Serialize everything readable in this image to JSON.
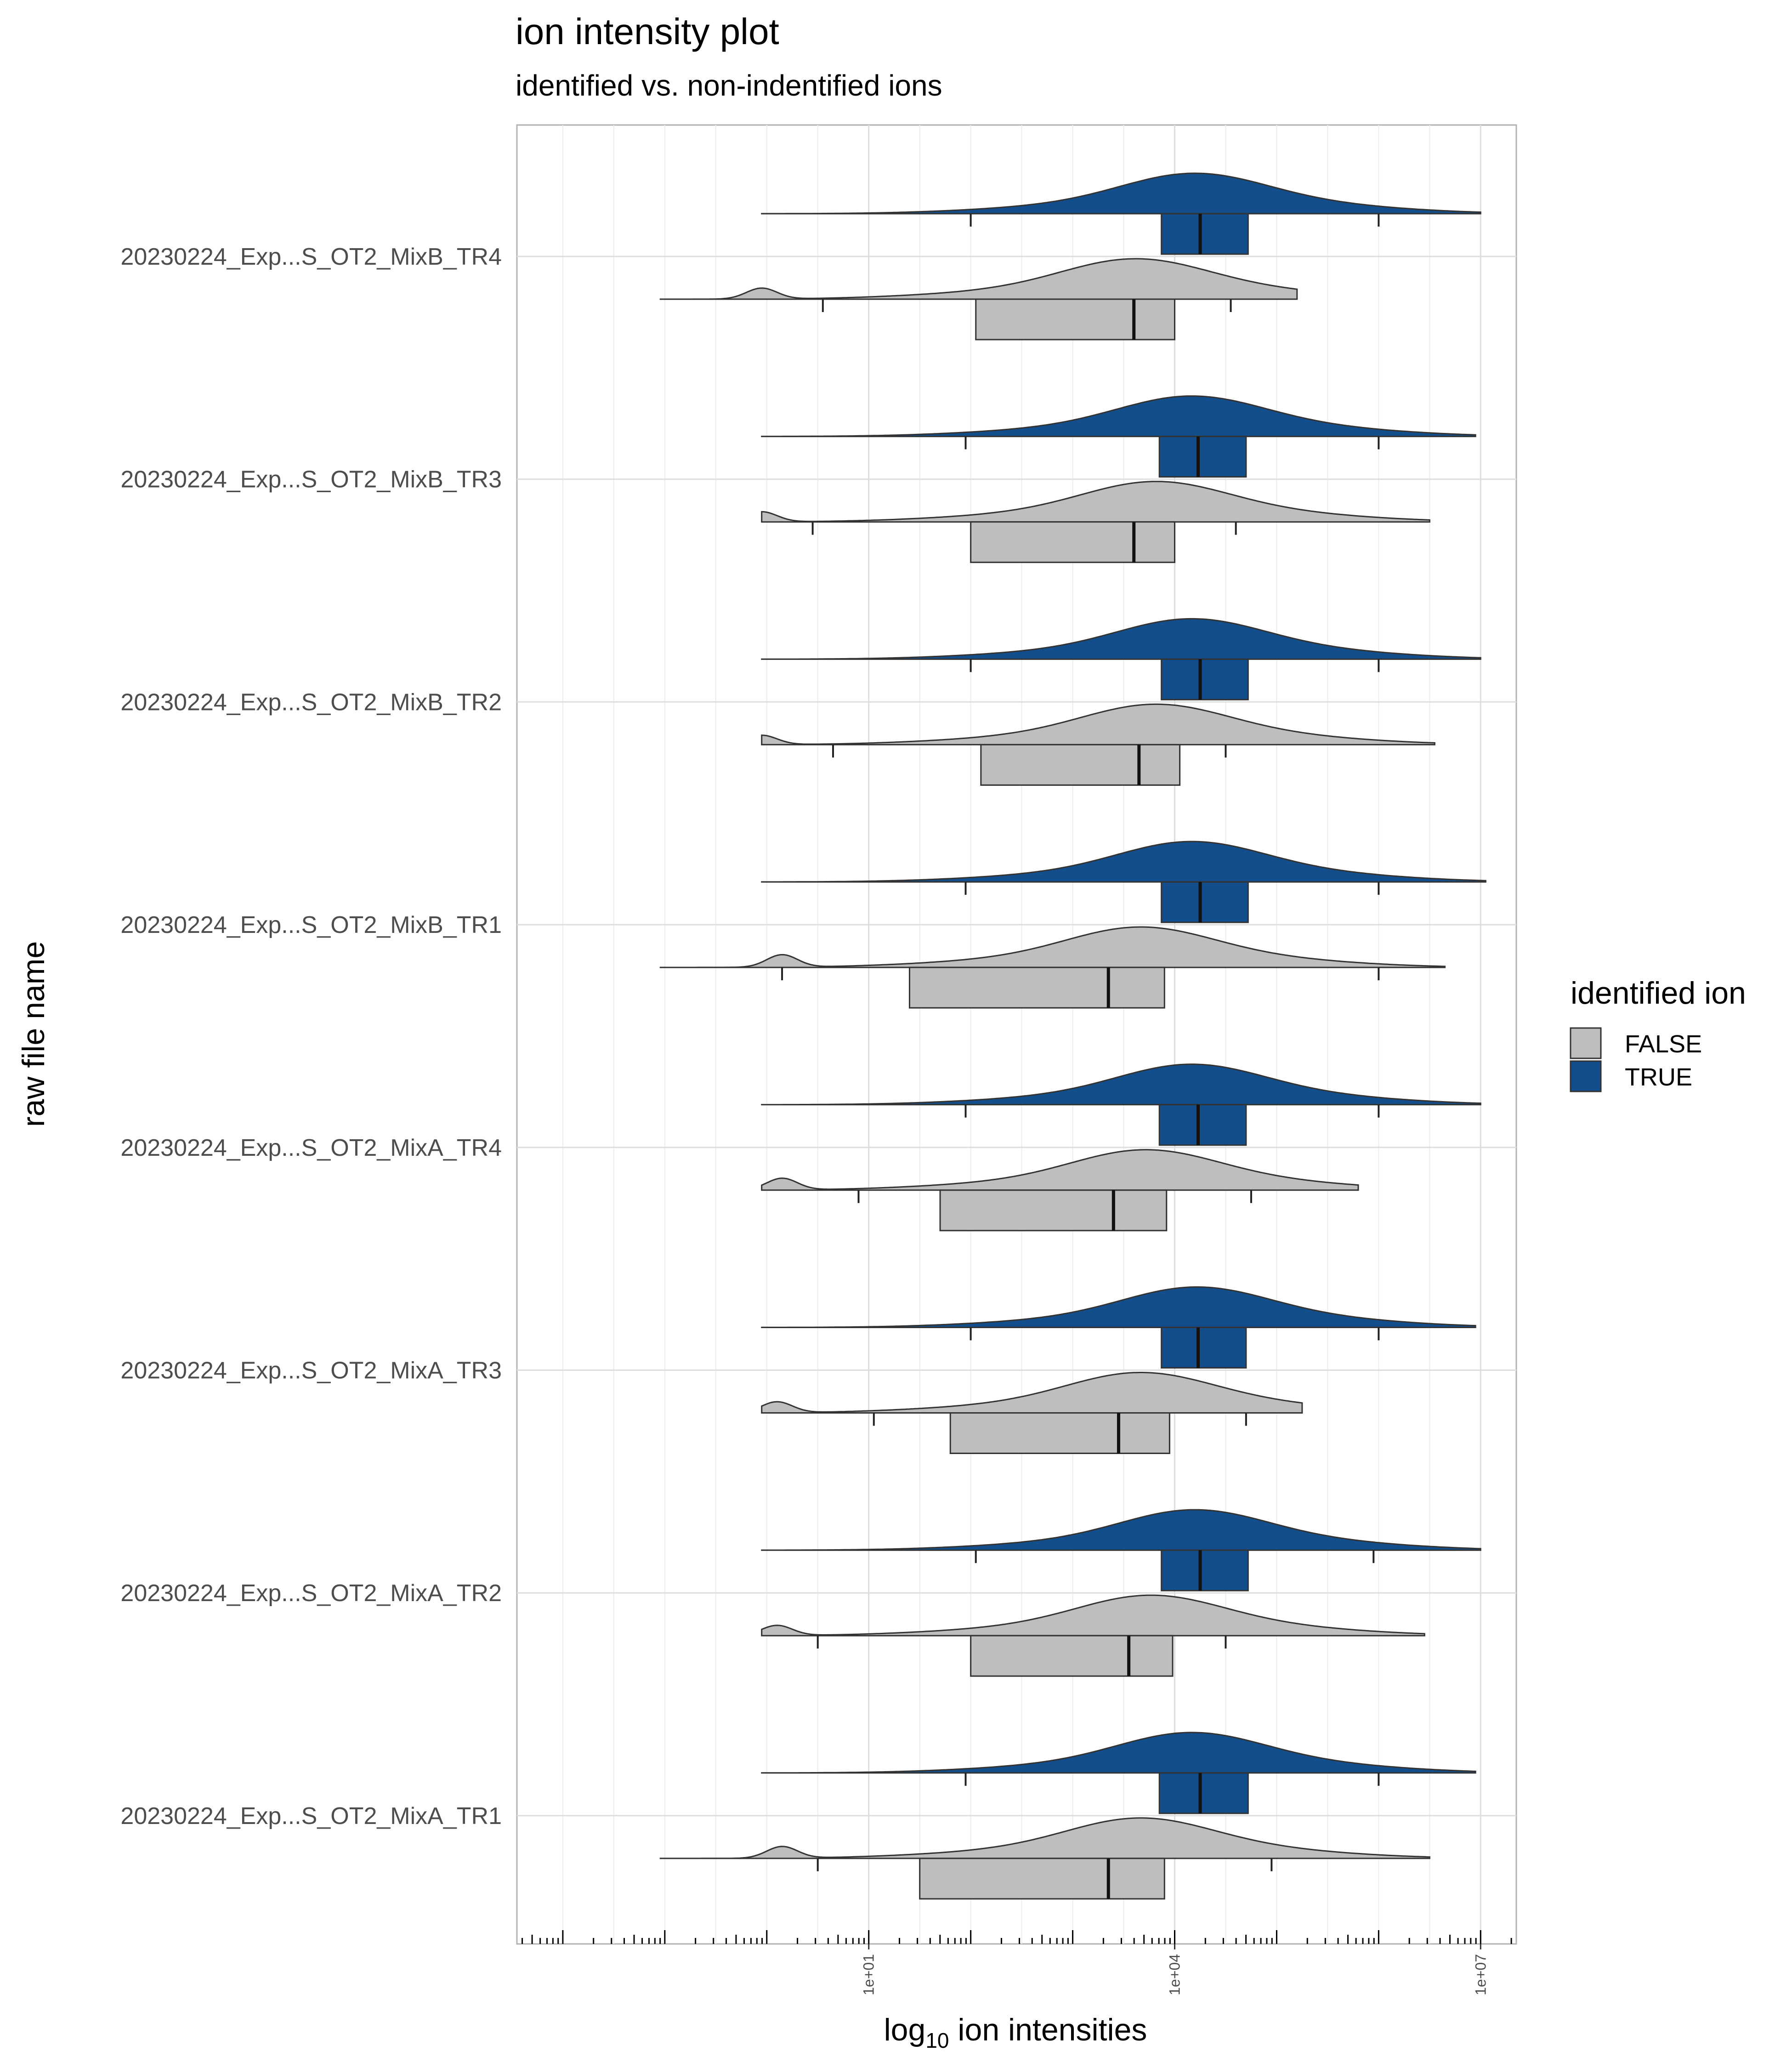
{
  "chart_data": {
    "type": "ridgeline-density-boxplot",
    "title": "ion intensity plot",
    "subtitle": "identified vs. non-indentified ions",
    "xlabel_main": "log",
    "xlabel_sub": "10",
    "xlabel_rest": " ion intensities",
    "ylabel": "raw file name",
    "x_scale": "log10",
    "xlim_log10": [
      -2.45,
      7.35
    ],
    "x_tick_labels": [
      {
        "label": "1e+01",
        "log10": 1
      },
      {
        "label": "1e+04",
        "log10": 4
      },
      {
        "label": "1e+07",
        "log10": 7
      }
    ],
    "grid": true,
    "legend": {
      "title": "identified ion",
      "placement": "right",
      "entries": [
        {
          "label": "FALSE",
          "color": "#bebebe"
        },
        {
          "label": "TRUE",
          "color": "#124e8c"
        }
      ]
    },
    "colors": {
      "FALSE": "#bebebe",
      "TRUE": "#124e8c"
    },
    "series": [
      {
        "name": "20230224_Exp...S_OT2_MixB_TR4",
        "TRUE": {
          "min": -0.05,
          "max": 7.0,
          "peak": 4.18,
          "q1": 3.87,
          "median": 4.25,
          "q3": 4.72,
          "whisker_low": 2.0,
          "whisker_high": 6.0
        },
        "FALSE": {
          "min": -1.05,
          "max": 5.2,
          "peak": 3.6,
          "small_peak": -0.05,
          "small_peak_height": 0.28,
          "q1": 2.05,
          "median": 3.6,
          "q3": 4.0,
          "whisker_low": 0.55,
          "whisker_high": 4.55
        }
      },
      {
        "name": "20230224_Exp...S_OT2_MixB_TR3",
        "TRUE": {
          "min": -0.05,
          "max": 6.95,
          "peak": 4.15,
          "q1": 3.85,
          "median": 4.23,
          "q3": 4.7,
          "whisker_low": 1.95,
          "whisker_high": 6.0
        },
        "FALSE": {
          "min": -0.05,
          "max": 6.5,
          "peak": 3.8,
          "small_peak": -0.05,
          "small_peak_height": 0.26,
          "q1": 2.0,
          "median": 3.6,
          "q3": 4.0,
          "whisker_low": 0.45,
          "whisker_high": 4.6
        }
      },
      {
        "name": "20230224_Exp...S_OT2_MixB_TR2",
        "TRUE": {
          "min": -0.05,
          "max": 7.0,
          "peak": 4.15,
          "q1": 3.87,
          "median": 4.25,
          "q3": 4.72,
          "whisker_low": 2.0,
          "whisker_high": 6.0
        },
        "FALSE": {
          "min": -0.05,
          "max": 6.55,
          "peak": 3.8,
          "small_peak": -0.05,
          "small_peak_height": 0.24,
          "q1": 2.1,
          "median": 3.65,
          "q3": 4.05,
          "whisker_low": 0.65,
          "whisker_high": 4.5
        }
      },
      {
        "name": "20230224_Exp...S_OT2_MixB_TR1",
        "TRUE": {
          "min": -0.05,
          "max": 7.05,
          "peak": 4.15,
          "q1": 3.87,
          "median": 4.25,
          "q3": 4.72,
          "whisker_low": 1.95,
          "whisker_high": 6.0
        },
        "FALSE": {
          "min": -1.05,
          "max": 6.65,
          "peak": 3.65,
          "small_peak": 0.15,
          "small_peak_height": 0.32,
          "q1": 1.4,
          "median": 3.35,
          "q3": 3.9,
          "whisker_low": 0.15,
          "whisker_high": 6.0
        }
      },
      {
        "name": "20230224_Exp...S_OT2_MixA_TR4",
        "TRUE": {
          "min": -0.05,
          "max": 7.0,
          "peak": 4.15,
          "q1": 3.85,
          "median": 4.23,
          "q3": 4.7,
          "whisker_low": 1.95,
          "whisker_high": 6.0
        },
        "FALSE": {
          "min": -0.05,
          "max": 5.8,
          "peak": 3.7,
          "small_peak": 0.15,
          "small_peak_height": 0.3,
          "q1": 1.7,
          "median": 3.4,
          "q3": 3.92,
          "whisker_low": 0.9,
          "whisker_high": 4.75
        }
      },
      {
        "name": "20230224_Exp...S_OT2_MixA_TR3",
        "TRUE": {
          "min": -0.05,
          "max": 6.95,
          "peak": 4.2,
          "q1": 3.87,
          "median": 4.23,
          "q3": 4.7,
          "whisker_low": 2.0,
          "whisker_high": 6.0
        },
        "FALSE": {
          "min": -0.05,
          "max": 5.25,
          "peak": 3.65,
          "small_peak": 0.1,
          "small_peak_height": 0.28,
          "q1": 1.8,
          "median": 3.45,
          "q3": 3.95,
          "whisker_low": 1.05,
          "whisker_high": 4.7
        }
      },
      {
        "name": "20230224_Exp...S_OT2_MixA_TR2",
        "TRUE": {
          "min": -0.05,
          "max": 7.0,
          "peak": 4.18,
          "q1": 3.87,
          "median": 4.25,
          "q3": 4.72,
          "whisker_low": 2.05,
          "whisker_high": 5.95
        },
        "FALSE": {
          "min": -0.05,
          "max": 6.45,
          "peak": 3.75,
          "small_peak": 0.1,
          "small_peak_height": 0.26,
          "q1": 2.0,
          "median": 3.55,
          "q3": 3.98,
          "whisker_low": 0.5,
          "whisker_high": 4.5
        }
      },
      {
        "name": "20230224_Exp...S_OT2_MixA_TR1",
        "TRUE": {
          "min": -0.05,
          "max": 6.95,
          "peak": 4.15,
          "q1": 3.85,
          "median": 4.25,
          "q3": 4.72,
          "whisker_low": 1.95,
          "whisker_high": 6.0
        },
        "FALSE": {
          "min": -1.05,
          "max": 6.5,
          "peak": 3.65,
          "small_peak": 0.15,
          "small_peak_height": 0.3,
          "q1": 1.5,
          "median": 3.35,
          "q3": 3.9,
          "whisker_low": 0.5,
          "whisker_high": 4.95
        }
      }
    ]
  }
}
